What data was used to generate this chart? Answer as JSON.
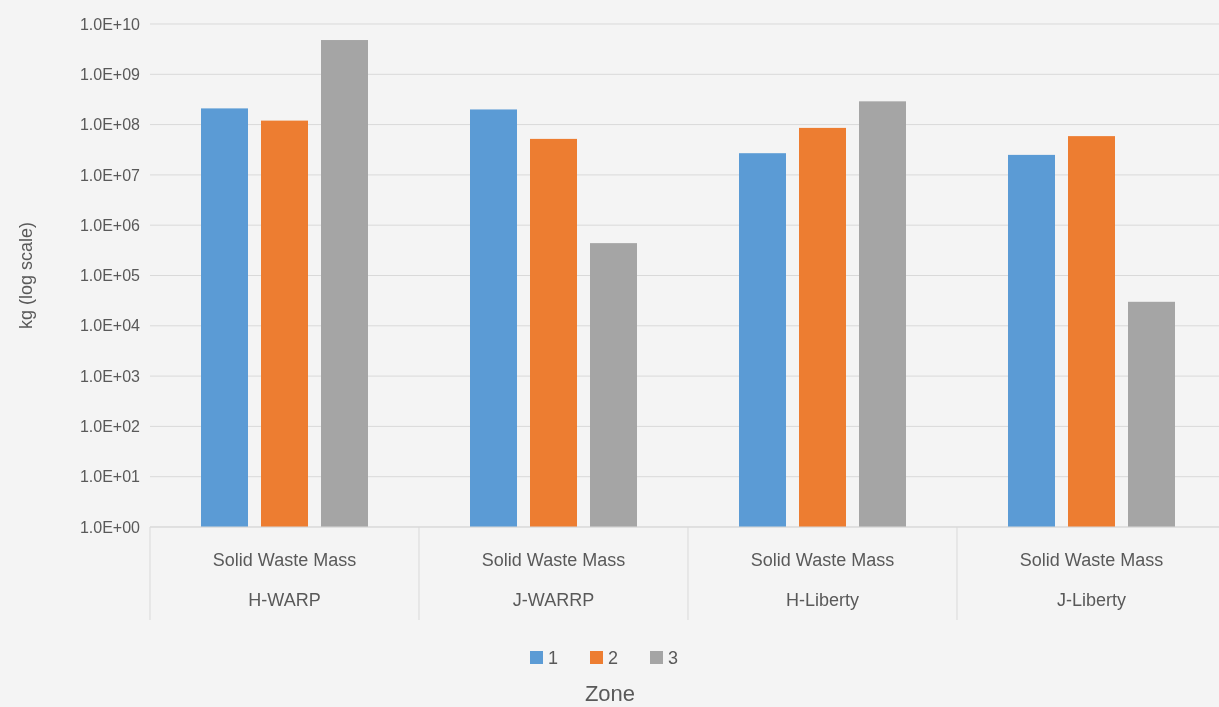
{
  "chart_data": {
    "type": "bar",
    "xlabel": "Zone",
    "ylabel": "kg (log scale)",
    "categories": [
      "Solid Waste Mass\nH-WARP",
      "Solid Waste Mass\nJ-WARRP",
      "Solid Waste Mass\nH-Liberty",
      "Solid Waste Mass\nJ-Liberty"
    ],
    "series": [
      {
        "name": "1",
        "color": "#5b9bd5",
        "values": [
          210000000,
          200000000,
          27000000,
          25000000
        ]
      },
      {
        "name": "2",
        "color": "#ed7d31",
        "values": [
          120000000,
          52000000,
          86000000,
          59000000
        ]
      },
      {
        "name": "3",
        "color": "#a5a5a5",
        "values": [
          4800000000,
          440000,
          290000000,
          30000
        ]
      }
    ],
    "log": true,
    "ylim": [
      1,
      10000000000
    ],
    "yticks": [
      {
        "value": 1,
        "label": "1.0E+00"
      },
      {
        "value": 10,
        "label": "1.0E+01"
      },
      {
        "value": 100,
        "label": "1.0E+02"
      },
      {
        "value": 1000,
        "label": "1.0E+03"
      },
      {
        "value": 10000,
        "label": "1.0E+04"
      },
      {
        "value": 100000,
        "label": "1.0E+05"
      },
      {
        "value": 1000000,
        "label": "1.0E+06"
      },
      {
        "value": 10000000,
        "label": "1.0E+07"
      },
      {
        "value": 100000000,
        "label": "1.0E+08"
      },
      {
        "value": 1000000000,
        "label": "1.0E+09"
      },
      {
        "value": 10000000000,
        "label": "1.0E+10"
      }
    ],
    "grid": "y",
    "legend": "bottom"
  }
}
